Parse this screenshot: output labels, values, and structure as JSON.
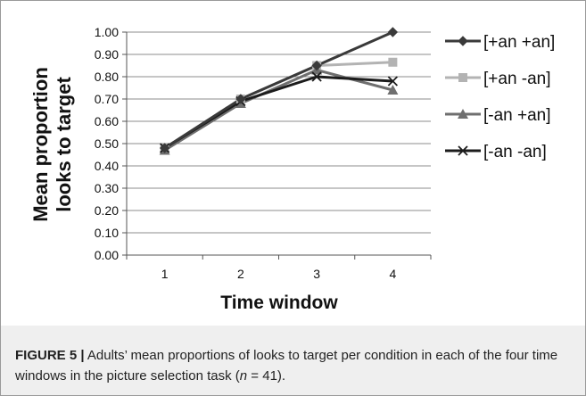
{
  "chart_data": {
    "type": "line",
    "categories": [
      "1",
      "2",
      "3",
      "4"
    ],
    "xlabel": "Time window",
    "ylabel_lines": [
      "Mean proportion",
      "looks to target"
    ],
    "ylim": [
      0,
      1
    ],
    "yticks": [
      "0.00",
      "0.10",
      "0.20",
      "0.30",
      "0.40",
      "0.50",
      "0.60",
      "0.70",
      "0.80",
      "0.90",
      "1.00"
    ],
    "grid": "horizontal",
    "legend_position": "right",
    "series": [
      {
        "name": "[+an +an]",
        "values": [
          0.48,
          0.7,
          0.85,
          1.0
        ],
        "color": "#3a3a3a",
        "marker": "diamond"
      },
      {
        "name": "[+an -an]",
        "values": [
          0.48,
          0.7,
          0.85,
          0.865
        ],
        "color": "#b3b3b3",
        "marker": "square"
      },
      {
        "name": "[-an +an]",
        "values": [
          0.47,
          0.68,
          0.83,
          0.74
        ],
        "color": "#6f6f6f",
        "marker": "triangle"
      },
      {
        "name": "[-an -an]",
        "values": [
          0.48,
          0.69,
          0.8,
          0.78
        ],
        "color": "#1c1c1c",
        "marker": "x"
      }
    ]
  },
  "caption": {
    "label": "FIGURE 5 |",
    "text_before_n": " Adults’ mean proportions of looks to target per condition in each of the four time windows in the picture selection task (",
    "n": "n",
    "text_after_n": " = 41)."
  }
}
